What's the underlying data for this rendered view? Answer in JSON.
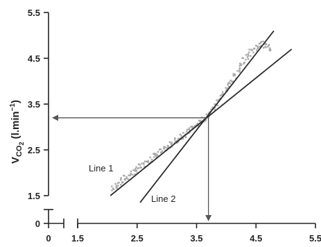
{
  "chart_data": {
    "type": "scatter",
    "ylabel": "VCO2 (l.min-1)",
    "ylabel_parts": {
      "main": "V",
      "sub": "CO",
      "sub2": "2",
      "unit_open": " (l.min",
      "unit_sup": "−1",
      "unit_close": ")"
    },
    "x_ticks": [
      "0",
      "1.5",
      "2.5",
      "3.5",
      "4.5",
      "5.5"
    ],
    "y_ticks": [
      "0",
      "1.5",
      "2.5",
      "3.5",
      "4.5",
      "5.5"
    ],
    "xlim": [
      1.5,
      5.5
    ],
    "ylim": [
      1.5,
      5.5
    ],
    "axis_break": true,
    "grid": false,
    "point_color": "#a9a9a9",
    "series": [
      {
        "points": [
          [
            2.1,
            1.65
          ],
          [
            2.15,
            1.72
          ],
          [
            2.2,
            1.78
          ],
          [
            2.25,
            1.82
          ],
          [
            2.3,
            1.88
          ],
          [
            2.35,
            1.92
          ],
          [
            2.4,
            1.98
          ],
          [
            2.45,
            2.02
          ],
          [
            2.5,
            2.06
          ],
          [
            2.55,
            2.12
          ],
          [
            2.6,
            2.16
          ],
          [
            2.65,
            2.2
          ],
          [
            2.7,
            2.26
          ],
          [
            2.75,
            2.3
          ],
          [
            2.8,
            2.36
          ],
          [
            2.85,
            2.4
          ],
          [
            2.9,
            2.45
          ],
          [
            2.95,
            2.5
          ],
          [
            3.0,
            2.55
          ],
          [
            3.05,
            2.6
          ],
          [
            3.1,
            2.64
          ],
          [
            3.15,
            2.7
          ],
          [
            3.2,
            2.74
          ],
          [
            3.25,
            2.8
          ],
          [
            3.3,
            2.84
          ],
          [
            3.35,
            2.88
          ],
          [
            3.4,
            2.94
          ],
          [
            3.45,
            2.98
          ],
          [
            3.5,
            3.04
          ],
          [
            3.55,
            3.08
          ],
          [
            3.6,
            3.14
          ],
          [
            3.65,
            3.2
          ],
          [
            3.7,
            3.28
          ],
          [
            3.75,
            3.36
          ],
          [
            3.8,
            3.44
          ],
          [
            3.85,
            3.52
          ],
          [
            3.9,
            3.62
          ],
          [
            3.95,
            3.72
          ],
          [
            4.0,
            3.82
          ],
          [
            4.05,
            3.92
          ],
          [
            4.1,
            4.02
          ],
          [
            4.15,
            4.12
          ],
          [
            4.2,
            4.24
          ],
          [
            4.25,
            4.34
          ],
          [
            4.3,
            4.44
          ],
          [
            4.35,
            4.54
          ],
          [
            4.4,
            4.62
          ],
          [
            4.45,
            4.68
          ],
          [
            4.5,
            4.74
          ],
          [
            4.55,
            4.78
          ],
          [
            4.6,
            4.8
          ],
          [
            4.65,
            4.78
          ],
          [
            4.7,
            4.76
          ],
          [
            4.75,
            4.72
          ]
        ]
      }
    ],
    "fit_lines": [
      {
        "label": "Line 1",
        "from": [
          2.05,
          1.5
        ],
        "to": [
          5.1,
          4.7
        ]
      },
      {
        "label": "Line 2",
        "from": [
          2.55,
          1.35
        ],
        "to": [
          4.8,
          5.1
        ]
      }
    ],
    "threshold": {
      "x": 3.7,
      "y": 3.2
    }
  }
}
